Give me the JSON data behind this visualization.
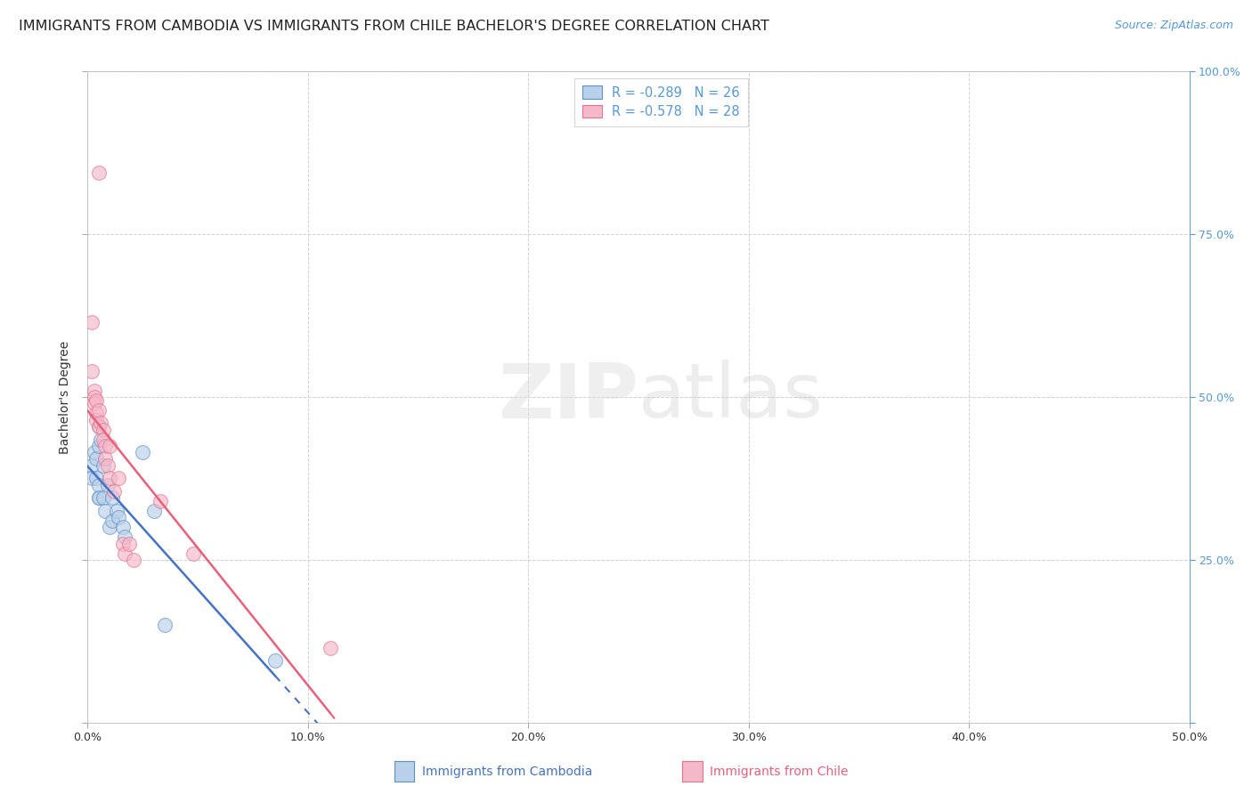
{
  "title": "IMMIGRANTS FROM CAMBODIA VS IMMIGRANTS FROM CHILE BACHELOR'S DEGREE CORRELATION CHART",
  "source": "Source: ZipAtlas.com",
  "ylabel": "Bachelor's Degree",
  "xlim": [
    0.0,
    0.5
  ],
  "ylim": [
    0.0,
    1.0
  ],
  "xtick_vals": [
    0.0,
    0.1,
    0.2,
    0.3,
    0.4,
    0.5
  ],
  "xticklabels": [
    "0.0%",
    "10.0%",
    "20.0%",
    "30.0%",
    "40.0%",
    "50.0%"
  ],
  "ytick_vals": [
    0.0,
    0.25,
    0.5,
    0.75,
    1.0
  ],
  "yticklabels_right": [
    "",
    "25.0%",
    "50.0%",
    "75.0%",
    "100.0%"
  ],
  "legend_line1": "R = -0.289   N = 26",
  "legend_line2": "R = -0.578   N = 28",
  "watermark": "ZIPatlas",
  "cambodia_scatter": [
    [
      0.002,
      0.395
    ],
    [
      0.002,
      0.375
    ],
    [
      0.003,
      0.415
    ],
    [
      0.004,
      0.405
    ],
    [
      0.004,
      0.375
    ],
    [
      0.005,
      0.345
    ],
    [
      0.005,
      0.455
    ],
    [
      0.005,
      0.425
    ],
    [
      0.005,
      0.365
    ],
    [
      0.005,
      0.345
    ],
    [
      0.006,
      0.435
    ],
    [
      0.007,
      0.395
    ],
    [
      0.007,
      0.345
    ],
    [
      0.008,
      0.325
    ],
    [
      0.009,
      0.365
    ],
    [
      0.01,
      0.3
    ],
    [
      0.011,
      0.345
    ],
    [
      0.011,
      0.31
    ],
    [
      0.013,
      0.325
    ],
    [
      0.014,
      0.315
    ],
    [
      0.016,
      0.3
    ],
    [
      0.017,
      0.285
    ],
    [
      0.025,
      0.415
    ],
    [
      0.03,
      0.325
    ],
    [
      0.035,
      0.15
    ],
    [
      0.085,
      0.095
    ]
  ],
  "chile_scatter": [
    [
      0.002,
      0.615
    ],
    [
      0.002,
      0.54
    ],
    [
      0.003,
      0.51
    ],
    [
      0.003,
      0.5
    ],
    [
      0.003,
      0.49
    ],
    [
      0.004,
      0.495
    ],
    [
      0.004,
      0.475
    ],
    [
      0.004,
      0.465
    ],
    [
      0.005,
      0.48
    ],
    [
      0.005,
      0.455
    ],
    [
      0.006,
      0.46
    ],
    [
      0.007,
      0.45
    ],
    [
      0.007,
      0.435
    ],
    [
      0.008,
      0.425
    ],
    [
      0.008,
      0.405
    ],
    [
      0.009,
      0.395
    ],
    [
      0.01,
      0.425
    ],
    [
      0.01,
      0.375
    ],
    [
      0.012,
      0.355
    ],
    [
      0.014,
      0.375
    ],
    [
      0.016,
      0.275
    ],
    [
      0.017,
      0.26
    ],
    [
      0.019,
      0.275
    ],
    [
      0.021,
      0.25
    ],
    [
      0.033,
      0.34
    ],
    [
      0.048,
      0.26
    ],
    [
      0.11,
      0.115
    ],
    [
      0.005,
      0.845
    ]
  ],
  "cambodia_line_color": "#4472c4",
  "chile_line_color": "#e8607a",
  "scatter_cambodia_fill": "#b8d0ea",
  "scatter_chile_fill": "#f5b8c8",
  "scatter_cambodia_edge": "#6090c8",
  "scatter_chile_edge": "#e87090",
  "grid_color": "#cccccc",
  "background_color": "#ffffff",
  "right_axis_color": "#5599dd",
  "title_fontsize": 11.5,
  "axis_label_fontsize": 10,
  "tick_fontsize": 9,
  "source_fontsize": 9,
  "scatter_size": 130,
  "scatter_alpha": 0.65
}
